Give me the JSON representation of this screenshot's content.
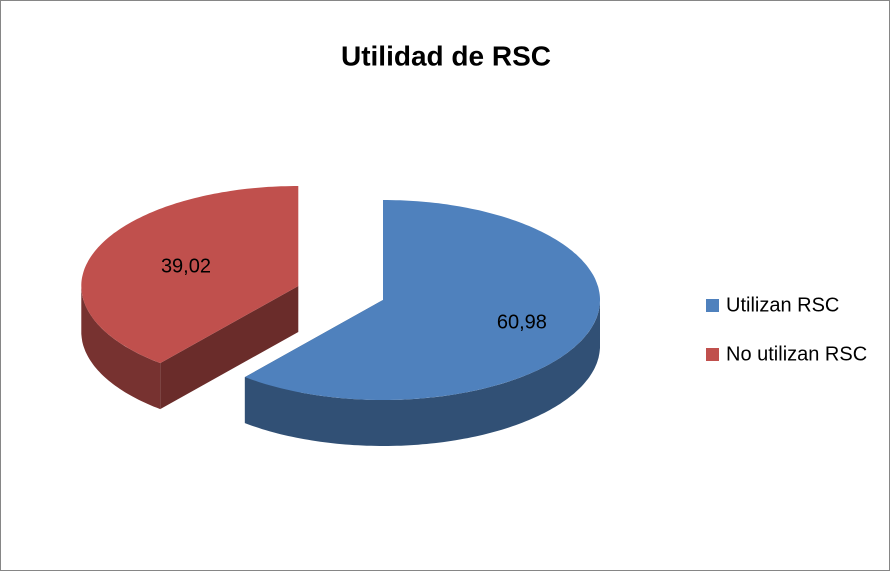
{
  "chart_data": {
    "type": "pie3d",
    "title": "Utilidad de RSC",
    "categories": [
      "Utilizan RSC",
      "No utilizan RSC"
    ],
    "values": [
      60.98,
      39.02
    ],
    "value_labels": [
      "60,98",
      "39,02"
    ],
    "colors": [
      "#4f81bd",
      "#c0504d"
    ],
    "legend": "right"
  }
}
